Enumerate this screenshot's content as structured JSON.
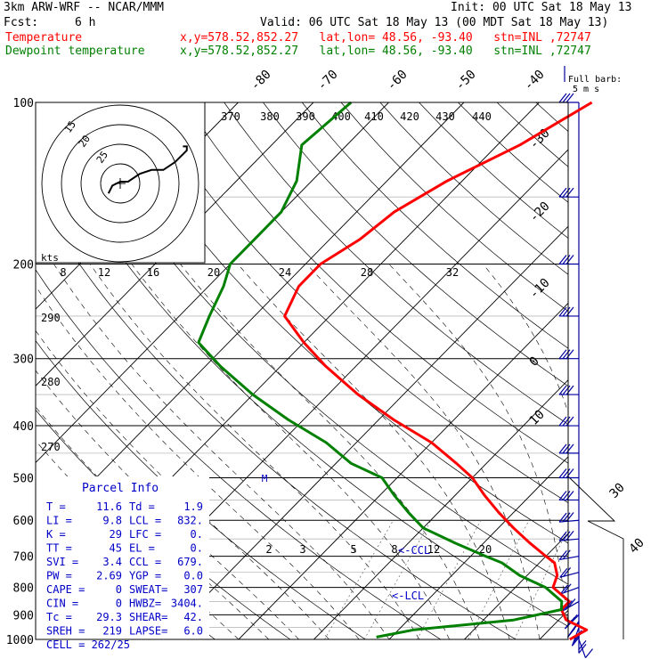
{
  "header": {
    "model": "3km ARW-WRF -- NCAR/MMM",
    "init": "Init: 00 UTC Sat 18 May 13",
    "fcst_label": "Fcst:",
    "fcst_value": "6 h",
    "valid": "Valid: 06 UTC Sat 18 May 13 (00 MDT Sat 18 May 13)",
    "temp_label": "Temperature",
    "dew_label": "Dewpoint temperature",
    "temp_loc": "x,y=578.52,852.27   lat,lon= 48.56, -93.40   stn=INL ,72747",
    "dew_loc": "x,y=578.52,852.27   lat,lon= 48.56, -93.40   stn=INL ,72747"
  },
  "colors": {
    "temperature": "#ff0000",
    "dewpoint": "#008000",
    "parcel_text": "#0000c8",
    "wind_barbs": "#0000a0",
    "isobars": "#000000"
  },
  "labels": {
    "full_barb": "Full barb:",
    "full_barb_value": "5 m s",
    "kts": "kts",
    "ccl_marker": "<-CCL",
    "lcl_marker": "<-LCL",
    "lfc_marker": "M"
  },
  "parcel_info": {
    "title": "Parcel Info",
    "rows": [
      [
        "T  =",
        "11.6",
        "Td =",
        "1.9"
      ],
      [
        "LI =",
        "9.8",
        "LCL =",
        "832."
      ],
      [
        "K  =",
        "29",
        "LFC =",
        "0."
      ],
      [
        "TT =",
        "45",
        "EL  =",
        "0."
      ],
      [
        "SVI =",
        "3.4",
        "CCL =",
        "679."
      ],
      [
        "PW =",
        "2.69",
        "YGP =",
        "0.0"
      ],
      [
        "CAPE =",
        "0",
        "SWEAT=",
        "307"
      ],
      [
        "CIN  =",
        "0",
        "HWBZ=",
        "3404."
      ],
      [
        "Tc =",
        "29.3",
        "SHEAR=",
        "42."
      ],
      [
        "SREH =",
        "219",
        "LAPSE=",
        "6.0"
      ]
    ],
    "cell": "CELL = 262/25"
  },
  "chart_data": {
    "type": "line",
    "title": "",
    "xlabel": "",
    "ylabel": "",
    "pressure_levels": [
      "100",
      "200",
      "300",
      "400",
      "500",
      "600",
      "700",
      "800",
      "900",
      "1000"
    ],
    "isotherm_labels": [
      "-80",
      "-70",
      "-60",
      "-50",
      "-40",
      "-30",
      "-20",
      "-10",
      "0",
      "10"
    ],
    "theta_labels": [
      "370",
      "380",
      "390",
      "400",
      "410",
      "420",
      "430",
      "440"
    ],
    "theta_side_labels": [
      "290",
      "280",
      "270"
    ],
    "mixing_ratio_labels": [
      "2",
      "3",
      "5",
      "8",
      "12",
      "20"
    ],
    "hodograph_kts_labels": [
      "8",
      "12",
      "16",
      "20",
      "24",
      "28",
      "32"
    ],
    "hodograph_ring_labels": [
      "15",
      "20",
      "25"
    ],
    "barb_scale_labels": [
      "30",
      "40"
    ],
    "series": [
      {
        "name": "Temperature",
        "color": "#ff0000",
        "points": [
          [
            24,
            1000
          ],
          [
            25,
            960
          ],
          [
            21,
            920
          ],
          [
            19,
            880
          ],
          [
            19,
            850
          ],
          [
            15,
            800
          ],
          [
            14,
            760
          ],
          [
            12,
            720
          ],
          [
            10,
            700
          ],
          [
            6,
            660
          ],
          [
            2,
            620
          ],
          [
            -2,
            580
          ],
          [
            -6,
            540
          ],
          [
            -10,
            500
          ],
          [
            -14,
            470
          ],
          [
            -20,
            430
          ],
          [
            -28,
            390
          ],
          [
            -36,
            350
          ],
          [
            -44,
            310
          ],
          [
            -50,
            280
          ],
          [
            -56,
            250
          ],
          [
            -58,
            220
          ],
          [
            -58,
            200
          ],
          [
            -56,
            180
          ],
          [
            -55,
            160
          ],
          [
            -52,
            140
          ],
          [
            -47,
            120
          ],
          [
            -43,
            100
          ]
        ]
      },
      {
        "name": "Dewpoint temperature",
        "color": "#008000",
        "points": [
          [
            -2,
            990
          ],
          [
            2,
            960
          ],
          [
            14,
            920
          ],
          [
            19,
            880
          ],
          [
            18,
            850
          ],
          [
            14,
            800
          ],
          [
            9,
            760
          ],
          [
            5,
            720
          ],
          [
            2,
            700
          ],
          [
            -4,
            660
          ],
          [
            -10,
            620
          ],
          [
            -14,
            580
          ],
          [
            -18,
            540
          ],
          [
            -22,
            500
          ],
          [
            -28,
            470
          ],
          [
            -34,
            430
          ],
          [
            -42,
            390
          ],
          [
            -50,
            350
          ],
          [
            -58,
            310
          ],
          [
            -64,
            280
          ],
          [
            -66,
            250
          ],
          [
            -68,
            220
          ],
          [
            -70,
            200
          ],
          [
            -70,
            180
          ],
          [
            -70,
            160
          ],
          [
            -72,
            140
          ],
          [
            -76,
            120
          ],
          [
            -75,
            100
          ]
        ]
      }
    ],
    "hodograph": {
      "points": [
        [
          -3,
          2
        ],
        [
          -2,
          4
        ],
        [
          0,
          5
        ],
        [
          2,
          5
        ],
        [
          5,
          7
        ],
        [
          8,
          8
        ],
        [
          11,
          8
        ],
        [
          14,
          10
        ],
        [
          17,
          13
        ],
        [
          17,
          14
        ],
        [
          16,
          14
        ]
      ]
    },
    "wind_profile": [
      {
        "p": 1000,
        "speed_ms": 5,
        "dir": 160
      },
      {
        "p": 975,
        "speed_ms": 10,
        "dir": 180
      },
      {
        "p": 950,
        "speed_ms": 15,
        "dir": 200
      },
      {
        "p": 925,
        "speed_ms": 15,
        "dir": 215
      },
      {
        "p": 900,
        "speed_ms": 15,
        "dir": 225
      },
      {
        "p": 850,
        "speed_ms": 15,
        "dir": 240
      },
      {
        "p": 800,
        "speed_ms": 10,
        "dir": 250
      },
      {
        "p": 750,
        "speed_ms": 10,
        "dir": 255
      },
      {
        "p": 700,
        "speed_ms": 10,
        "dir": 260
      },
      {
        "p": 650,
        "speed_ms": 15,
        "dir": 265
      },
      {
        "p": 600,
        "speed_ms": 15,
        "dir": 265
      },
      {
        "p": 550,
        "speed_ms": 15,
        "dir": 270
      },
      {
        "p": 500,
        "speed_ms": 15,
        "dir": 270
      },
      {
        "p": 450,
        "speed_ms": 15,
        "dir": 270
      },
      {
        "p": 400,
        "speed_ms": 15,
        "dir": 270
      },
      {
        "p": 350,
        "speed_ms": 15,
        "dir": 270
      },
      {
        "p": 300,
        "speed_ms": 15,
        "dir": 270
      },
      {
        "p": 250,
        "speed_ms": 15,
        "dir": 270
      },
      {
        "p": 200,
        "speed_ms": 15,
        "dir": 270
      },
      {
        "p": 150,
        "speed_ms": 15,
        "dir": 270
      },
      {
        "p": 100,
        "speed_ms": 15,
        "dir": 270
      }
    ]
  }
}
